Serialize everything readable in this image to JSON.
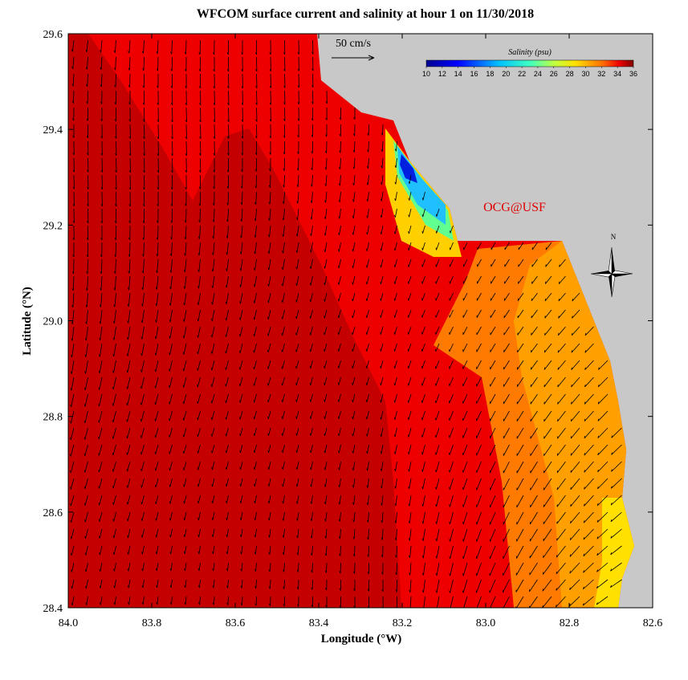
{
  "title": "WFCOM surface current and salinity at hour 1 on 11/30/2018",
  "x_axis": {
    "label": "Longitude (°W)",
    "lim": [
      84.0,
      82.6
    ],
    "ticks": [
      {
        "value": 84,
        "label": "84.0"
      },
      83.8,
      83.6,
      83.4,
      83.2,
      {
        "value": 83,
        "label": "83.0"
      },
      82.8,
      82.6
    ]
  },
  "y_axis": {
    "label": "Latitude (°N)",
    "lim": [
      28.4,
      29.6
    ],
    "ticks": [
      28.4,
      28.6,
      28.8,
      {
        "value": 29,
        "label": "29.0"
      },
      29.2,
      29.4,
      29.6
    ]
  },
  "colorbar": {
    "title": "Salinity (psu)",
    "lim": [
      10,
      36
    ],
    "ticks": [
      10,
      12,
      14,
      16,
      18,
      20,
      22,
      24,
      26,
      28,
      30,
      32,
      34,
      36
    ]
  },
  "scale_label": "50 cm/s",
  "credit": "OCG@USF",
  "compass": "N"
}
